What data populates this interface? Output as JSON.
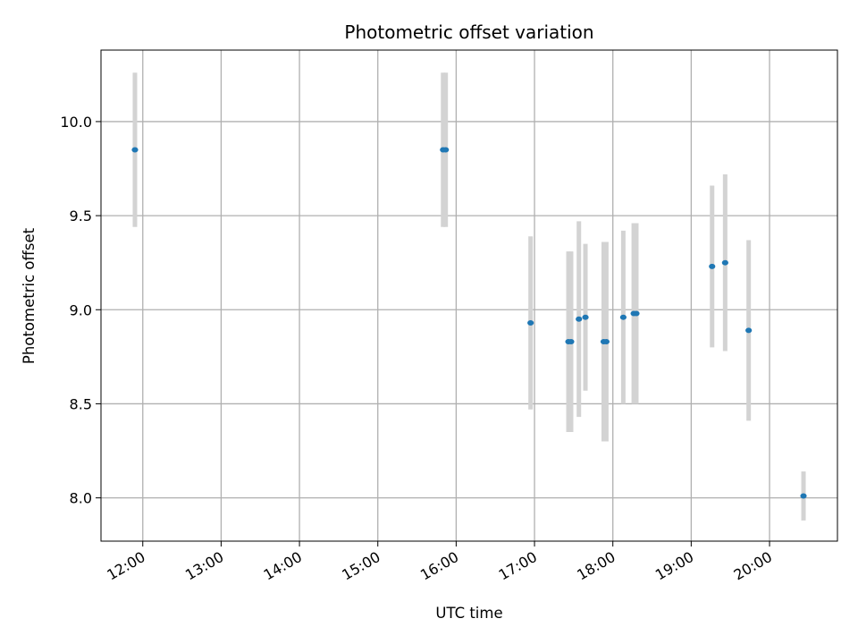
{
  "chart_data": {
    "type": "scatter",
    "title": "Photometric offset variation",
    "xlabel": "UTC time",
    "ylabel": "Photometric offset",
    "x_ticks": [
      "12:00",
      "13:00",
      "14:00",
      "15:00",
      "16:00",
      "17:00",
      "18:00",
      "19:00",
      "20:00"
    ],
    "y_ticks": [
      "8.0",
      "8.5",
      "9.0",
      "9.5",
      "10.0"
    ],
    "xlim": [
      "11:28",
      "20:52"
    ],
    "ylim": [
      7.77,
      10.38
    ],
    "grid": true,
    "point_color": "#1f77b4",
    "errorbar_color": "#d3d3d3",
    "points": [
      {
        "x": "11:54",
        "y": 9.85,
        "err": 0.41
      },
      {
        "x": "15:50",
        "y": 9.85,
        "err": 0.41
      },
      {
        "x": "15:52",
        "y": 9.85,
        "err": 0.41
      },
      {
        "x": "16:57",
        "y": 8.93,
        "err": 0.46
      },
      {
        "x": "17:26",
        "y": 8.83,
        "err": 0.48
      },
      {
        "x": "17:28",
        "y": 8.83,
        "err": 0.48
      },
      {
        "x": "17:34",
        "y": 8.95,
        "err": 0.52
      },
      {
        "x": "17:39",
        "y": 8.96,
        "err": 0.39
      },
      {
        "x": "17:53",
        "y": 8.83,
        "err": 0.53
      },
      {
        "x": "17:55",
        "y": 8.83,
        "err": 0.53
      },
      {
        "x": "18:08",
        "y": 8.96,
        "err": 0.46
      },
      {
        "x": "18:16",
        "y": 8.98,
        "err": 0.48
      },
      {
        "x": "18:18",
        "y": 8.98,
        "err": 0.48
      },
      {
        "x": "19:16",
        "y": 9.23,
        "err": 0.43
      },
      {
        "x": "19:26",
        "y": 9.25,
        "err": 0.47
      },
      {
        "x": "19:44",
        "y": 8.89,
        "err": 0.48
      },
      {
        "x": "20:26",
        "y": 8.01,
        "err": 0.13
      }
    ]
  }
}
